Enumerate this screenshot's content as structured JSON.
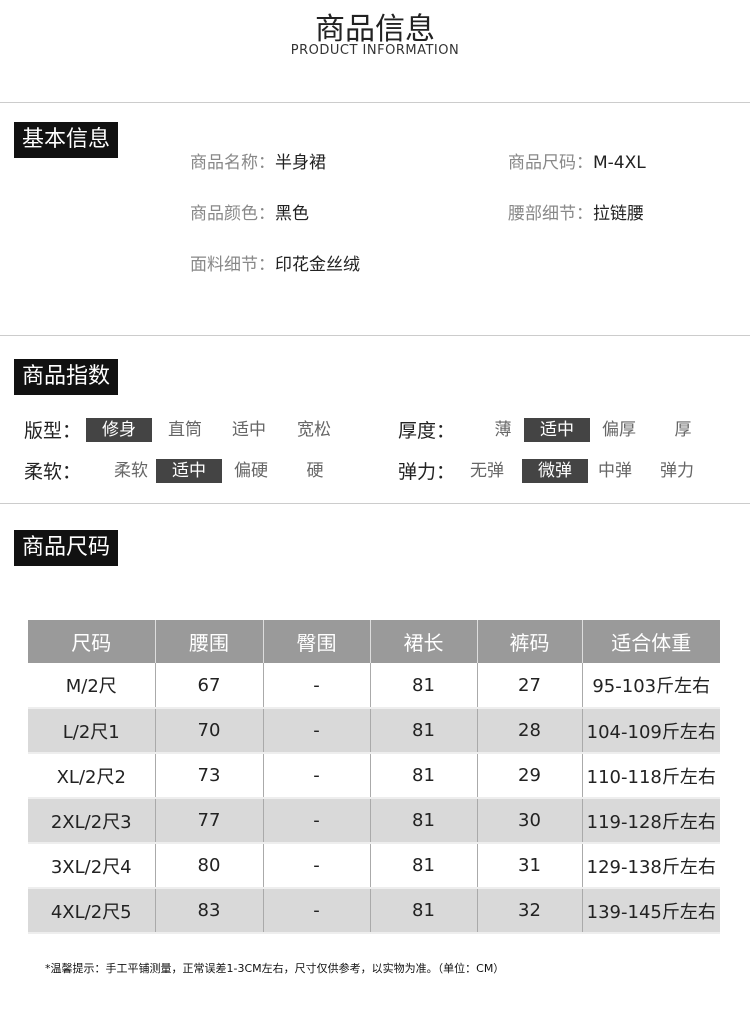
{
  "header": {
    "title": "商品信息",
    "subtitle": "PRODUCT INFORMATION"
  },
  "basic": {
    "heading": "基本信息",
    "name_label": "商品名称：",
    "name": "半身裙",
    "size_label": "商品尺码：",
    "size": "M-4XL",
    "color_label": "商品颜色：",
    "color": "黑色",
    "waist_label": "腰部细节：",
    "waist": "拉链腰",
    "fabric_label": "面料细节：",
    "fabric": "印花金丝绒"
  },
  "index": {
    "heading": "商品指数",
    "fit": {
      "label": "版型：",
      "options": [
        "修身",
        "直筒",
        "适中",
        "宽松"
      ],
      "selected": 0
    },
    "thickness": {
      "label": "厚度：",
      "options": [
        "薄",
        "适中",
        "偏厚",
        "厚"
      ],
      "selected": 1
    },
    "softness": {
      "label": "柔软：",
      "options": [
        "柔软",
        "适中",
        "偏硬",
        "硬"
      ],
      "selected": 1
    },
    "elasticity": {
      "label": "弹力：",
      "options": [
        "无弹",
        "微弹",
        "中弹",
        "弹力"
      ],
      "selected": 1
    }
  },
  "sizes": {
    "heading": "商品尺码",
    "columns": [
      "尺码",
      "腰围",
      "臀围",
      "裙长",
      "裤码",
      "适合体重"
    ],
    "rows": [
      [
        "M/2尺",
        "67",
        "-",
        "81",
        "27",
        "95-103斤左右"
      ],
      [
        "L/2尺1",
        "70",
        "-",
        "81",
        "28",
        "104-109斤左右"
      ],
      [
        "XL/2尺2",
        "73",
        "-",
        "81",
        "29",
        "110-118斤左右"
      ],
      [
        "2XL/2尺3",
        "77",
        "-",
        "81",
        "30",
        "119-128斤左右"
      ],
      [
        "3XL/2尺4",
        "80",
        "-",
        "81",
        "31",
        "129-138斤左右"
      ],
      [
        "4XL/2尺5",
        "83",
        "-",
        "81",
        "32",
        "139-145斤左右"
      ]
    ]
  },
  "note": "*温馨提示：手工平铺测量，正常误差1-3CM左右，尺寸仅供参考，以实物为准。（单位：CM）"
}
